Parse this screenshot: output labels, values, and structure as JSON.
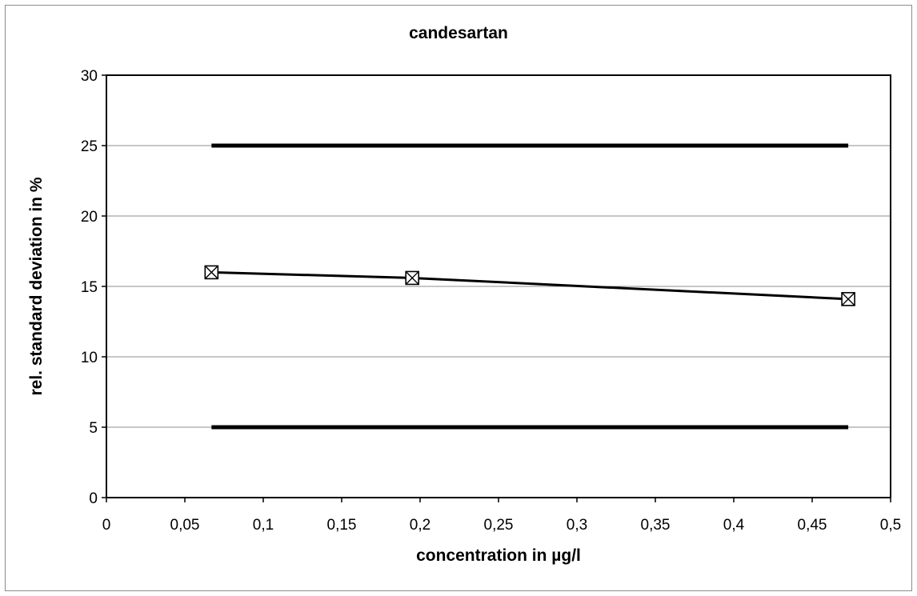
{
  "chart_data": {
    "type": "line",
    "title": "candesartan",
    "xlabel": "concentration in µg/l",
    "ylabel": "rel. standard deviation in %",
    "xlim": [
      0,
      0.5
    ],
    "ylim": [
      0,
      30
    ],
    "x_ticks": [
      "0",
      "0,05",
      "0,1",
      "0,15",
      "0,2",
      "0,25",
      "0,3",
      "0,35",
      "0,4",
      "0,45",
      "0,5"
    ],
    "y_ticks": [
      "0",
      "5",
      "10",
      "15",
      "20",
      "25",
      "30"
    ],
    "grid": true,
    "legend": "none",
    "series": [
      {
        "style": "line-marker",
        "color": "#000000",
        "marker": "boxed-x",
        "x": [
          0.067,
          0.195,
          0.473
        ],
        "y": [
          16.0,
          15.6,
          14.1
        ]
      },
      {
        "style": "thick-line",
        "color": "#000000",
        "x": [
          0.067,
          0.473
        ],
        "y": [
          25,
          25
        ]
      },
      {
        "style": "thick-line",
        "color": "#000000",
        "x": [
          0.067,
          0.473
        ],
        "y": [
          5,
          5
        ]
      }
    ]
  }
}
